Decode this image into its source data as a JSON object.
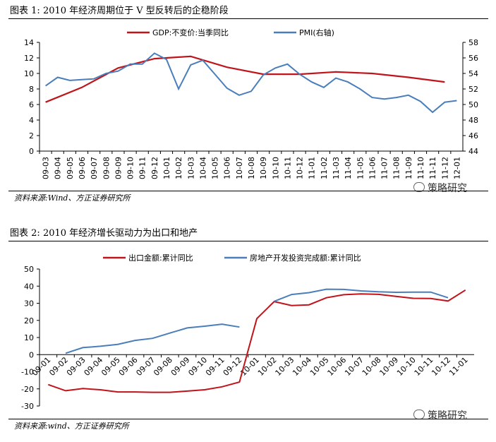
{
  "chart_data": [
    {
      "type": "line",
      "figure_label": "图表 1:",
      "title": "2010 年经济周期位于 V 型反转后的企稳阶段",
      "source": "资料来源:Wind、方正证券研究所",
      "watermark": "策略研究",
      "categories": [
        "09-03",
        "09-04",
        "09-05",
        "09-06",
        "09-07",
        "09-08",
        "09-09",
        "09-10",
        "09-11",
        "09-12",
        "10-01",
        "10-02",
        "10-03",
        "10-04",
        "10-05",
        "10-06",
        "10-07",
        "10-08",
        "10-09",
        "10-10",
        "10-11",
        "10-12",
        "11-01",
        "11-02",
        "11-03",
        "11-04",
        "11-05",
        "11-06",
        "11-07",
        "11-08",
        "11-09",
        "11-10",
        "11-11",
        "11-12",
        "12-01"
      ],
      "left_axis": {
        "min": 0,
        "max": 14,
        "ticks": [
          0,
          2,
          4,
          6,
          8,
          10,
          12,
          14
        ]
      },
      "right_axis": {
        "min": 44,
        "max": 58,
        "ticks": [
          44,
          46,
          48,
          50,
          52,
          54,
          56,
          58
        ]
      },
      "series": [
        {
          "name": "GDP:不变价:当季同比",
          "axis": "left",
          "color": "#c0141b",
          "points": [
            [
              0,
              6.3
            ],
            [
              3,
              8.2
            ],
            [
              6,
              10.7
            ],
            [
              9,
              11.9
            ],
            [
              12,
              12.2
            ],
            [
              15,
              10.8
            ],
            [
              18,
              9.9
            ],
            [
              21,
              9.9
            ],
            [
              24,
              10.2
            ],
            [
              27,
              10.0
            ],
            [
              30,
              9.5
            ],
            [
              33,
              8.9
            ]
          ]
        },
        {
          "name": "PMI(右轴)",
          "axis": "right",
          "color": "#4a7ebb",
          "values": [
            52.4,
            53.5,
            53.1,
            53.2,
            53.3,
            54.0,
            54.3,
            55.2,
            55.2,
            56.6,
            55.8,
            52.0,
            55.1,
            55.7,
            53.9,
            52.1,
            51.2,
            51.7,
            53.8,
            54.7,
            55.2,
            53.9,
            52.9,
            52.2,
            53.4,
            52.9,
            52.0,
            50.9,
            50.7,
            50.9,
            51.2,
            50.4,
            49.0,
            50.3,
            50.5
          ]
        }
      ]
    },
    {
      "type": "line",
      "figure_label": "图表 2:",
      "title": "2010 年经济增长驱动力为出口和地产",
      "source": "资料来源:wind、方正证券研究所",
      "watermark": "策略研究",
      "categories": [
        "09-01",
        "09-02",
        "09-03",
        "09-04",
        "09-05",
        "09-06",
        "09-07",
        "09-08",
        "09-09",
        "09-10",
        "09-11",
        "09-12",
        "10-01",
        "10-02",
        "10-03",
        "10-04",
        "10-05",
        "10-06",
        "10-07",
        "10-08",
        "10-09",
        "10-10",
        "10-11",
        "10-12",
        "11-01"
      ],
      "y_axis": {
        "min": -30,
        "max": 50,
        "ticks": [
          -30,
          -20,
          -10,
          0,
          10,
          20,
          30,
          40,
          50
        ]
      },
      "series": [
        {
          "name": "出口金额:累计同比",
          "color": "#c0141b",
          "values": [
            -17.5,
            -21.1,
            -19.8,
            -20.5,
            -21.8,
            -21.8,
            -22.0,
            -22.0,
            -21.3,
            -20.5,
            -18.8,
            -16.0,
            21.0,
            31.0,
            28.7,
            29.1,
            33.2,
            35.0,
            35.5,
            35.2,
            34.0,
            32.9,
            32.8,
            31.3,
            37.7
          ]
        },
        {
          "name": "房地产开发投资完成额:累计同比",
          "color": "#4a7ebb",
          "values": [
            null,
            0.8,
            4.1,
            4.9,
            6.0,
            8.3,
            9.5,
            12.6,
            15.6,
            16.6,
            17.8,
            16.1,
            null,
            31.1,
            35.1,
            36.2,
            38.2,
            38.1,
            37.2,
            36.7,
            36.4,
            36.5,
            36.5,
            33.2,
            null
          ]
        }
      ]
    }
  ]
}
